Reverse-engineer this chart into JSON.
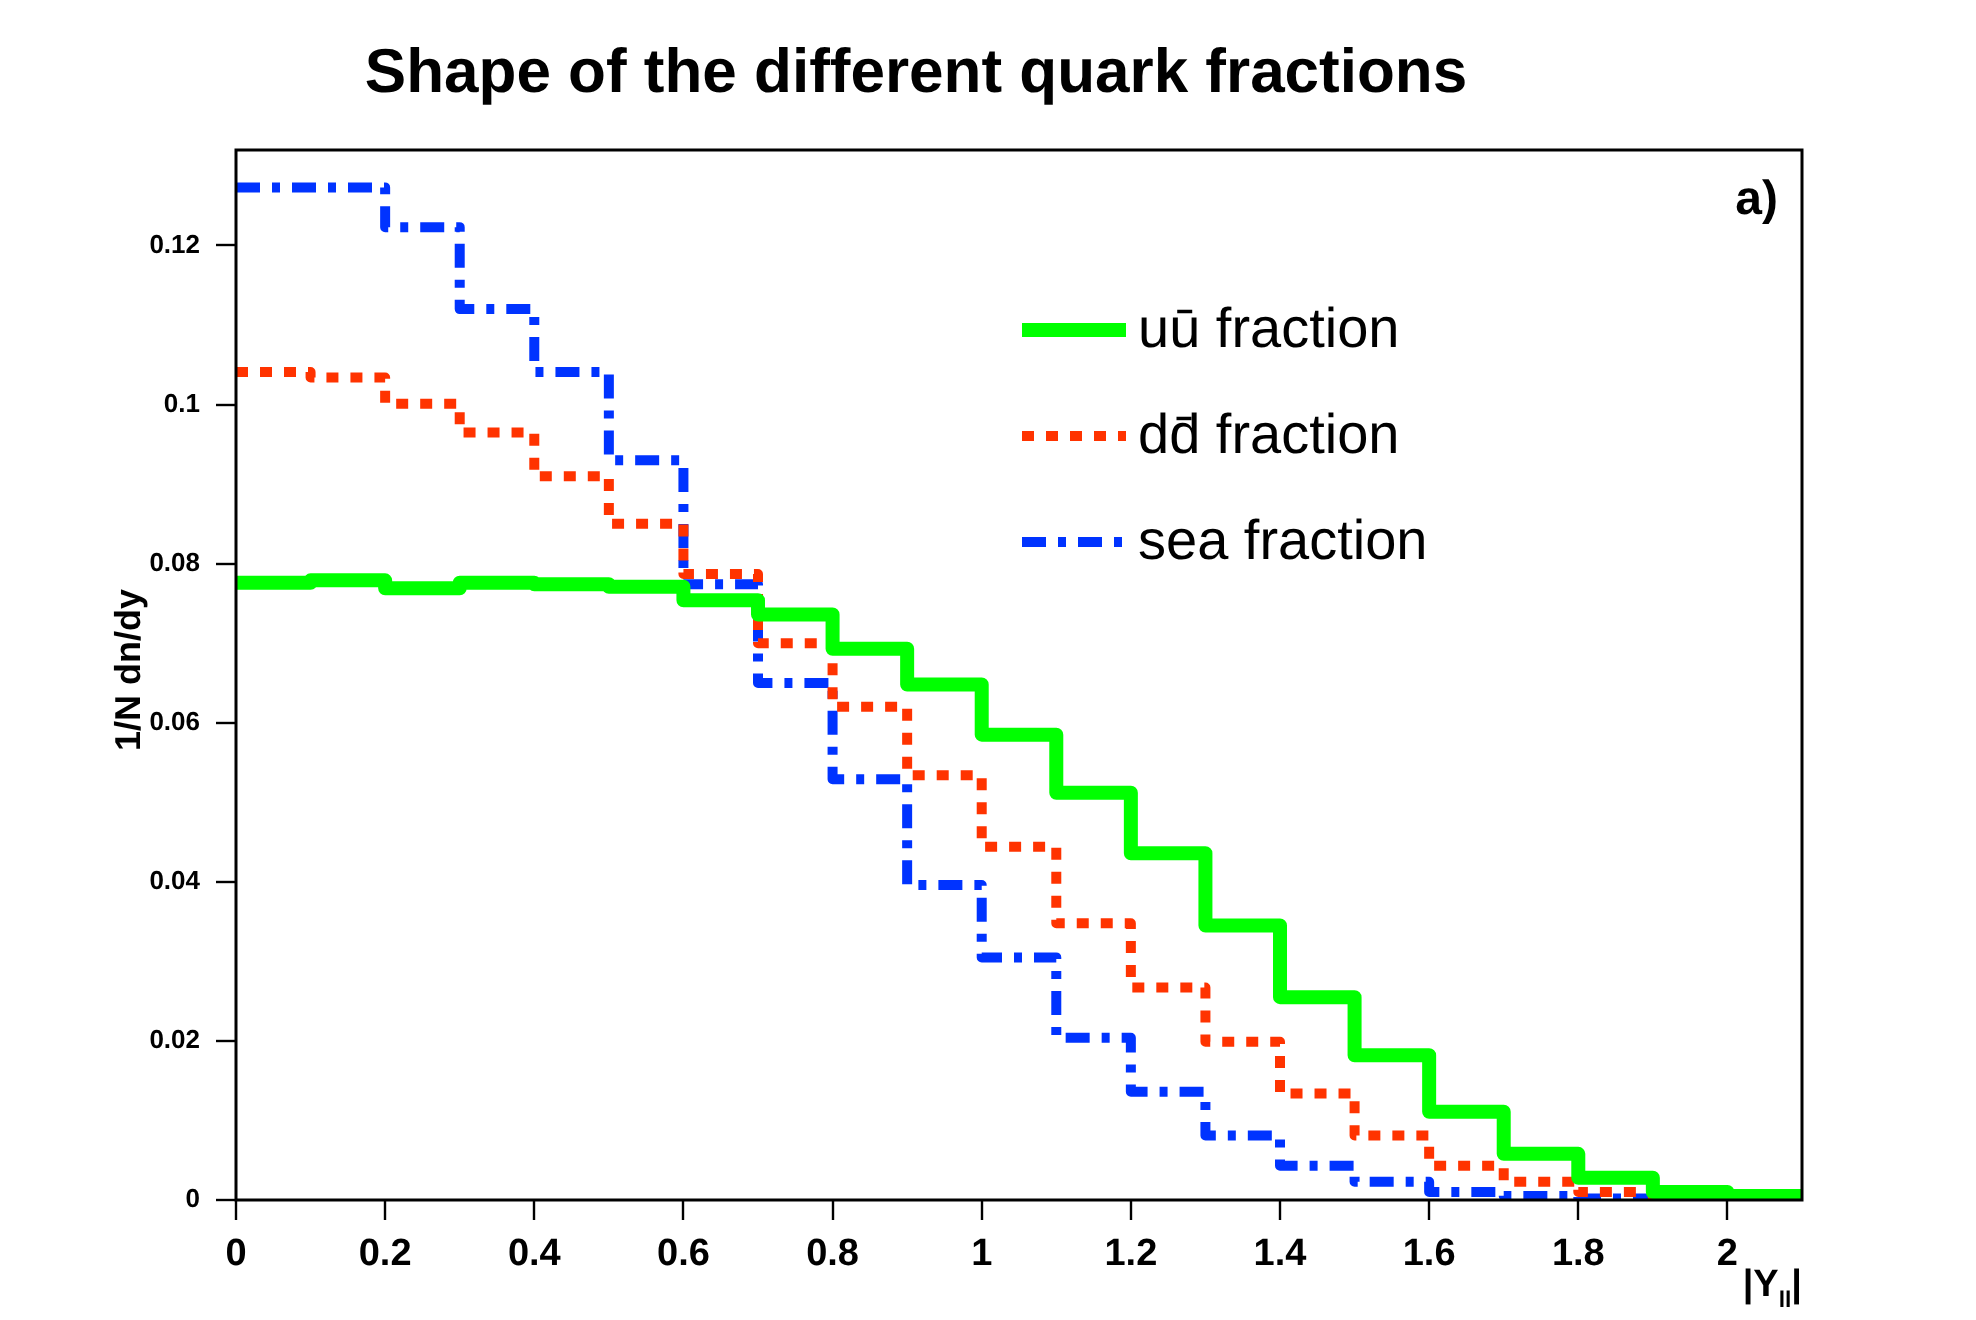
{
  "chart_data": {
    "type": "histogram",
    "title": "Shape of the different quark fractions",
    "xlabel": "|Y$_{ll}$|",
    "ylabel": "1/N dn/dy",
    "annotations": [
      "a)"
    ],
    "bins": [
      0,
      0.1,
      0.2,
      0.3,
      0.4,
      0.5,
      0.6,
      0.7,
      0.8,
      0.9,
      1.0,
      1.1,
      1.2,
      1.3,
      1.4,
      1.5,
      1.6,
      1.7,
      1.8,
      1.9,
      2.0,
      2.1
    ],
    "series": [
      {
        "name": "uū fraction",
        "color": "#00ff00",
        "line_style": "solid",
        "values": [
          0.0776,
          0.0779,
          0.0769,
          0.0776,
          0.0774,
          0.0771,
          0.0754,
          0.0736,
          0.0693,
          0.0648,
          0.0585,
          0.0512,
          0.0436,
          0.0345,
          0.0255,
          0.0182,
          0.0111,
          0.0058,
          0.0028,
          0.001,
          0.0005
        ]
      },
      {
        "name": "dd̄ fraction",
        "color": "#ff3300",
        "line_style": "dotted",
        "values": [
          0.1041,
          0.1034,
          0.1001,
          0.0965,
          0.091,
          0.085,
          0.0787,
          0.07,
          0.062,
          0.0534,
          0.0444,
          0.0348,
          0.0267,
          0.0199,
          0.0134,
          0.0081,
          0.0043,
          0.0023,
          0.001,
          0.0003,
          0.0003
        ]
      },
      {
        "name": "sea fraction",
        "color": "#0033ff",
        "line_style": "dashed",
        "values": [
          0.1273,
          0.1273,
          0.1223,
          0.112,
          0.1041,
          0.093,
          0.0774,
          0.065,
          0.0529,
          0.0396,
          0.0305,
          0.0204,
          0.0136,
          0.0081,
          0.0043,
          0.0023,
          0.001,
          0.0005,
          0.0002,
          0.0002,
          0.0001
        ]
      }
    ],
    "xlim": [
      0,
      2.1
    ],
    "xticks": [
      0,
      0.2,
      0.4,
      0.6,
      0.8,
      1,
      1.2,
      1.4,
      1.6,
      1.8,
      2
    ],
    "ylim": [
      0,
      0.132
    ],
    "yticks": [
      0,
      0.02,
      0.04,
      0.06,
      0.08,
      0.1,
      0.12
    ],
    "grid": false,
    "legend": "top right"
  }
}
